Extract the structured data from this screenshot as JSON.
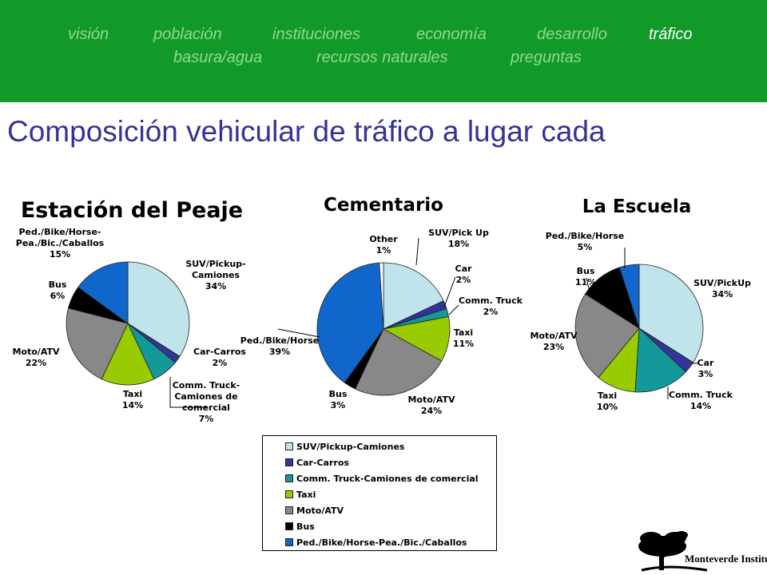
{
  "nav": {
    "items": [
      {
        "label": "visión"
      },
      {
        "label": "población"
      },
      {
        "label": "instituciones"
      },
      {
        "label": "economía"
      },
      {
        "label": "desarrollo"
      },
      {
        "label": "tráfico",
        "active": true
      },
      {
        "label": "basura/agua"
      },
      {
        "label": "recursos naturales"
      },
      {
        "label": "preguntas"
      }
    ]
  },
  "page_title": "Composición vehicular de tráfico a lugar cada",
  "colors": {
    "nav_bg": "#129A29",
    "nav_text": "#8fd98f",
    "nav_active": "#ffffff",
    "title": "#333399",
    "suv": "#BFE4EA",
    "car": "#333399",
    "truck": "#139999",
    "taxi": "#99CC00",
    "moto": "#888888",
    "bus": "#000000",
    "ped": "#1166CC"
  },
  "chart_data": [
    {
      "type": "pie",
      "title": "Estación del Peaje",
      "categories": [
        "SUV/Pickup-Camiones",
        "Car-Carros",
        "Comm. Truck-Camiones de comercial",
        "Taxi",
        "Moto/ATV",
        "Bus",
        "Ped./Bike/Horse-Pea./Bic./Caballos"
      ],
      "labels": [
        "SUV/Pickup-\nCamiones",
        "Car-Carros",
        "Comm. Truck-\nCamiones de\ncomercial",
        "Taxi",
        "Moto/ATV",
        "Bus",
        "Ped./Bike/Horse-\nPea./Bic./Caballos"
      ],
      "values": [
        34,
        2,
        7,
        14,
        22,
        6,
        15
      ]
    },
    {
      "type": "pie",
      "title": "Cementario",
      "categories": [
        "SUV/Pick Up",
        "Car",
        "Comm. Truck",
        "Taxi",
        "Moto/ATV",
        "Bus",
        "Ped./Bike/Horse",
        "Other"
      ],
      "labels": [
        "SUV/Pick Up",
        "Car",
        "Comm. Truck",
        "Taxi",
        "Moto/ATV",
        "Bus",
        "Ped./Bike/Horse",
        "Other"
      ],
      "values": [
        18,
        2,
        2,
        11,
        24,
        3,
        39,
        1
      ]
    },
    {
      "type": "pie",
      "title": "La Escuela",
      "categories": [
        "SUV/PickUp",
        "Car",
        "Comm. Truck",
        "Taxi",
        "Moto/ATV",
        "Bus",
        "Ped./Bike/Horse"
      ],
      "labels": [
        "SUV/PickUp",
        "Car",
        "Comm. Truck",
        "Taxi",
        "Moto/ATV",
        "Bus",
        "Ped./Bike/Horse"
      ],
      "values": [
        34,
        3,
        14,
        10,
        23,
        11,
        5
      ]
    }
  ],
  "legend": {
    "entries": [
      {
        "label": "SUV/Pickup-Camiones",
        "color": "#BFE4EA"
      },
      {
        "label": "Car-Carros",
        "color": "#333399"
      },
      {
        "label": "Comm. Truck-Camiones de comercial",
        "color": "#139999"
      },
      {
        "label": "Taxi",
        "color": "#99CC00"
      },
      {
        "label": "Moto/ATV",
        "color": "#888888"
      },
      {
        "label": "Bus",
        "color": "#000000"
      },
      {
        "label": "Ped./Bike/Horse-Pea./Bic./Caballos",
        "color": "#1166CC"
      }
    ]
  },
  "logo": {
    "text": "Monteverde Institute",
    "icon": "tree-icon"
  }
}
